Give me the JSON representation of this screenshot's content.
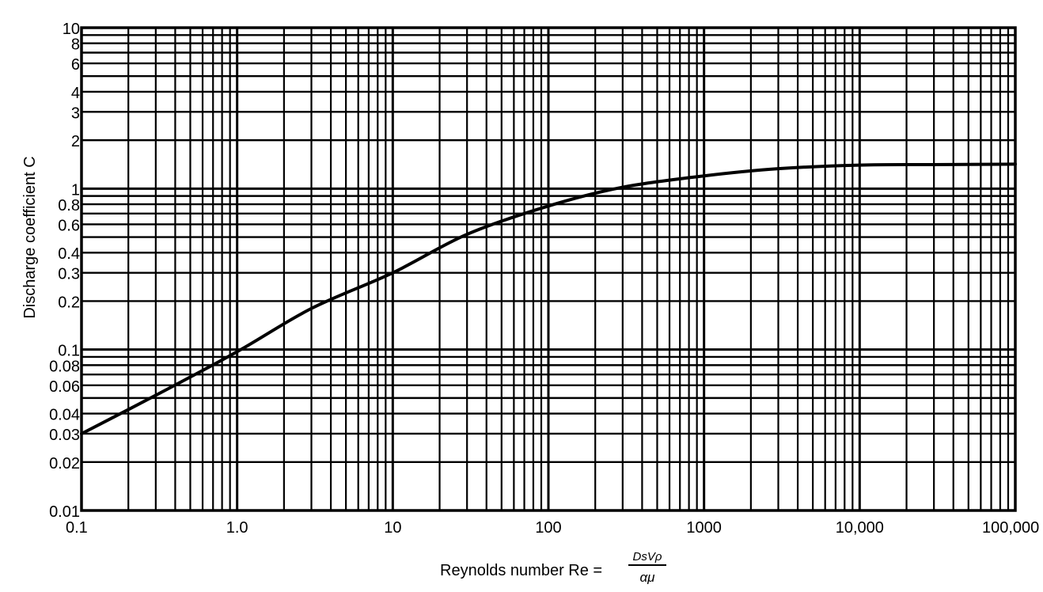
{
  "chart_data": {
    "type": "line",
    "title": "",
    "xlabel": "Reynolds number Re =",
    "xlabel_formula": {
      "numerator": "DsVρ",
      "denominator": "αμ"
    },
    "ylabel": "Discharge coefficient C",
    "x_scale": "log",
    "y_scale": "log",
    "xlim": [
      0.1,
      100000
    ],
    "ylim": [
      0.01,
      10
    ],
    "grid": true,
    "x_tick_labels": [
      {
        "value": 0.1,
        "label": "0.1"
      },
      {
        "value": 1,
        "label": "1.0"
      },
      {
        "value": 10,
        "label": "10"
      },
      {
        "value": 100,
        "label": "100"
      },
      {
        "value": 1000,
        "label": "1000"
      },
      {
        "value": 10000,
        "label": "10,000"
      },
      {
        "value": 100000,
        "label": "100,000"
      }
    ],
    "y_tick_labels": [
      {
        "value": 10,
        "label": "10"
      },
      {
        "value": 8,
        "label": "8"
      },
      {
        "value": 6,
        "label": "6"
      },
      {
        "value": 4,
        "label": "4"
      },
      {
        "value": 3,
        "label": "3"
      },
      {
        "value": 2,
        "label": "2"
      },
      {
        "value": 1,
        "label": "1"
      },
      {
        "value": 0.8,
        "label": "0.8"
      },
      {
        "value": 0.6,
        "label": "0.6"
      },
      {
        "value": 0.4,
        "label": "0.4"
      },
      {
        "value": 0.3,
        "label": "0.3"
      },
      {
        "value": 0.2,
        "label": "0.2"
      },
      {
        "value": 0.1,
        "label": "0.1"
      },
      {
        "value": 0.08,
        "label": "0.08"
      },
      {
        "value": 0.06,
        "label": "0.06"
      },
      {
        "value": 0.04,
        "label": "0.04"
      },
      {
        "value": 0.03,
        "label": "0.03"
      },
      {
        "value": 0.02,
        "label": "0.02"
      },
      {
        "value": 0.01,
        "label": "0.01"
      }
    ],
    "series": [
      {
        "color": "#000000",
        "x": [
          0.1,
          0.3,
          1,
          3,
          10,
          30,
          100,
          300,
          1000,
          3000,
          10000,
          30000,
          100000
        ],
        "y": [
          0.03,
          0.052,
          0.097,
          0.18,
          0.3,
          0.52,
          0.78,
          1.02,
          1.2,
          1.33,
          1.4,
          1.41,
          1.42
        ]
      }
    ]
  }
}
